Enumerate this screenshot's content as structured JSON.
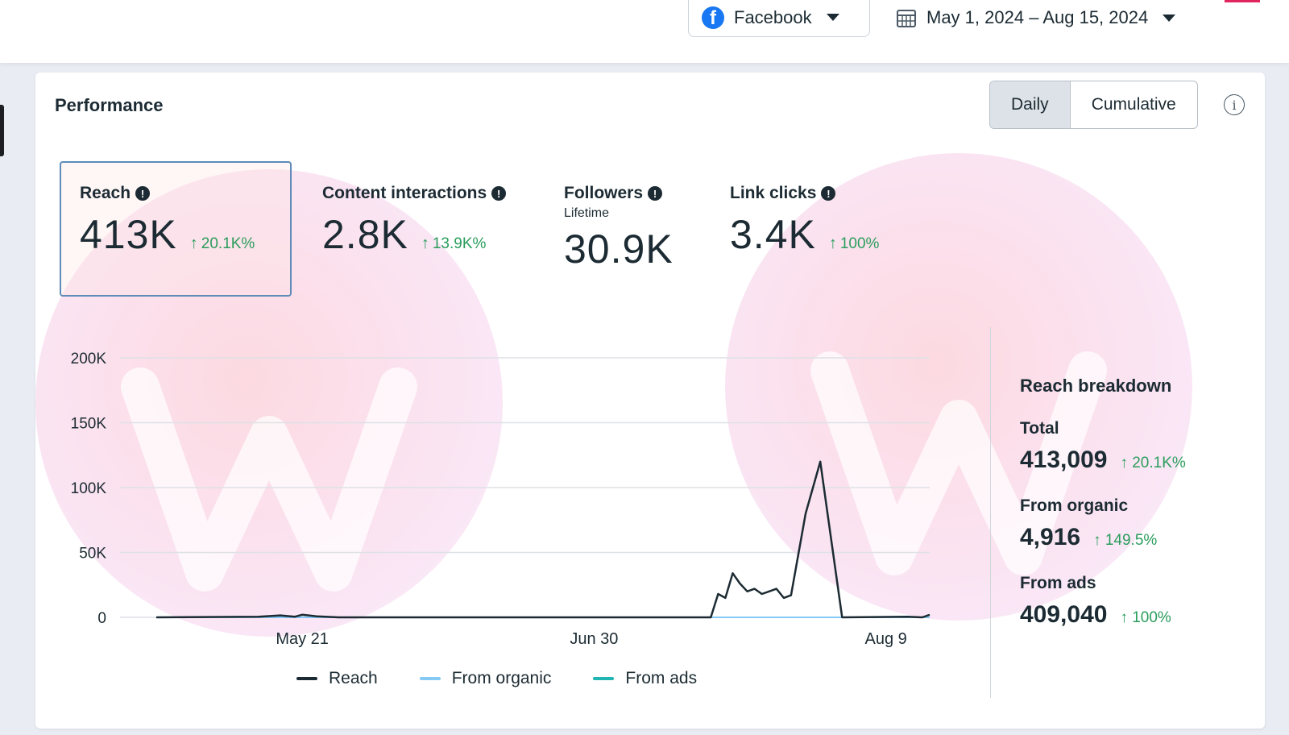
{
  "topbar": {
    "platform_label": "Facebook",
    "date_range": "May 1, 2024 – Aug 15, 2024"
  },
  "card": {
    "title": "Performance",
    "toggle": {
      "daily": "Daily",
      "cumulative": "Cumulative",
      "selected": "Daily"
    }
  },
  "metrics": [
    {
      "label": "Reach",
      "value": "413K",
      "change": "20.1K%",
      "sub": "",
      "selected": true
    },
    {
      "label": "Content interactions",
      "value": "2.8K",
      "change": "13.9K%",
      "sub": ""
    },
    {
      "label": "Followers",
      "value": "30.9K",
      "change": "",
      "sub": "Lifetime"
    },
    {
      "label": "Link clicks",
      "value": "3.4K",
      "change": "100%",
      "sub": ""
    }
  ],
  "chart_data": {
    "type": "line",
    "y_ticks": [
      "200K",
      "150K",
      "100K",
      "50K",
      "0"
    ],
    "ylim": [
      0,
      200000
    ],
    "x_ticks": [
      "May 21",
      "Jun 30",
      "Aug 9"
    ],
    "x_range": [
      "2024-05-01",
      "2024-08-15"
    ],
    "series": [
      {
        "name": "Reach",
        "color": "#1c2b33",
        "points": [
          [
            "2024-05-01",
            0
          ],
          [
            "2024-05-15",
            500
          ],
          [
            "2024-05-18",
            1500
          ],
          [
            "2024-05-20",
            500
          ],
          [
            "2024-05-21",
            2000
          ],
          [
            "2024-05-23",
            800
          ],
          [
            "2024-05-26",
            0
          ],
          [
            "2024-07-05",
            0
          ],
          [
            "2024-07-16",
            0
          ],
          [
            "2024-07-17",
            18000
          ],
          [
            "2024-07-18",
            15000
          ],
          [
            "2024-07-19",
            34000
          ],
          [
            "2024-07-20",
            26000
          ],
          [
            "2024-07-21",
            20000
          ],
          [
            "2024-07-22",
            22000
          ],
          [
            "2024-07-23",
            18000
          ],
          [
            "2024-07-24",
            20000
          ],
          [
            "2024-07-25",
            22000
          ],
          [
            "2024-07-26",
            15000
          ],
          [
            "2024-07-27",
            17000
          ],
          [
            "2024-07-29",
            80000
          ],
          [
            "2024-07-30",
            100000
          ],
          [
            "2024-07-31",
            120000
          ],
          [
            "2024-08-01",
            80000
          ],
          [
            "2024-08-03",
            0
          ],
          [
            "2024-08-12",
            500
          ],
          [
            "2024-08-14",
            0
          ],
          [
            "2024-08-15",
            2000
          ]
        ]
      },
      {
        "name": "From organic",
        "color": "#85c9f5",
        "points": [
          [
            "2024-05-01",
            0
          ],
          [
            "2024-08-15",
            0
          ]
        ]
      },
      {
        "name": "From ads",
        "color": "#20b5b0",
        "points": [
          [
            "2024-05-01",
            0
          ],
          [
            "2024-07-16",
            0
          ],
          [
            "2024-08-03",
            0
          ],
          [
            "2024-08-15",
            0
          ]
        ]
      }
    ]
  },
  "breakdown": {
    "title": "Reach breakdown",
    "items": [
      {
        "label": "Total",
        "value": "413,009",
        "change": "20.1K%"
      },
      {
        "label": "From organic",
        "value": "4,916",
        "change": "149.5%"
      },
      {
        "label": "From ads",
        "value": "409,040",
        "change": "100%"
      }
    ]
  },
  "icons": {
    "platform": "facebook-icon",
    "date": "calendar-icon",
    "caret": "chevron-down-icon",
    "info": "info-icon",
    "up": "arrow-up-icon"
  }
}
